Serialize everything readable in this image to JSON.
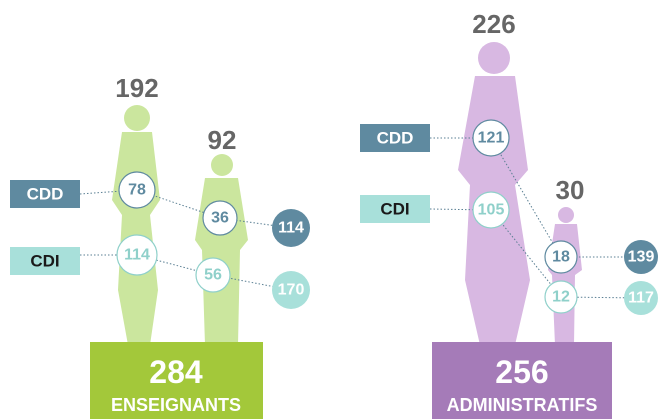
{
  "legend": {
    "cdd": "CDD",
    "cdi": "CDI"
  },
  "groups": [
    {
      "label": "ENSEIGNANTS",
      "total": 284,
      "people": [
        {
          "total": 192,
          "cdd": 78,
          "cdi": 114
        },
        {
          "total": 92,
          "cdd": 36,
          "cdi": 56
        }
      ],
      "sums": {
        "cdd": 114,
        "cdi": 170
      }
    },
    {
      "label": "ADMINISTRATIFS",
      "total": 256,
      "people": [
        {
          "total": 226,
          "cdd": 121,
          "cdi": 105
        },
        {
          "total": 30,
          "cdd": 18,
          "cdi": 12
        }
      ],
      "sums": {
        "cdd": 139,
        "cdi": 117
      }
    }
  ]
}
